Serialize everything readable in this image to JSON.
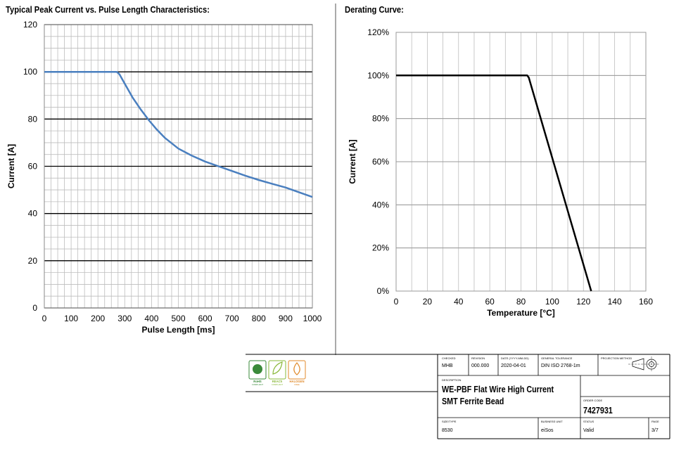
{
  "chart_data": [
    {
      "type": "line",
      "title": "Typical Peak Current vs. Pulse Length Characteristics:",
      "xlabel": "Pulse Length [ms]",
      "ylabel": "Current [A]",
      "xlim": [
        0,
        1000
      ],
      "ylim": [
        0,
        120
      ],
      "xticks": [
        "0",
        "100",
        "200",
        "300",
        "400",
        "500",
        "600",
        "700",
        "800",
        "900",
        "1000"
      ],
      "yticks": [
        "0",
        "20",
        "40",
        "60",
        "80",
        "100",
        "120"
      ],
      "grid": true,
      "color": "#4a7fbf",
      "series": [
        {
          "x": [
            0,
            270,
            280,
            300,
            330,
            360,
            390,
            420,
            450,
            500,
            550,
            600,
            650,
            700,
            750,
            800,
            850,
            900,
            950,
            1000
          ],
          "values": [
            100,
            100,
            99,
            95,
            89,
            84,
            79.5,
            75.5,
            72,
            67.5,
            64.5,
            62,
            60,
            58,
            56,
            54.2,
            52.6,
            51,
            49,
            47
          ]
        }
      ]
    },
    {
      "type": "line",
      "title": "Derating Curve:",
      "xlabel": "Temperature [°C]",
      "ylabel": "Current [A]",
      "xlim": [
        0,
        160
      ],
      "ylim": [
        0,
        120
      ],
      "xticks": [
        "0",
        "20",
        "40",
        "60",
        "80",
        "100",
        "120",
        "140",
        "160"
      ],
      "yticks": [
        "0%",
        "20%",
        "40%",
        "60%",
        "80%",
        "100%",
        "120%"
      ],
      "grid": true,
      "color": "#000000",
      "series": [
        {
          "x": [
            0,
            84,
            85,
            125
          ],
          "values": [
            100,
            100,
            99,
            0
          ]
        }
      ]
    }
  ],
  "badges": [
    {
      "label": "RoHS",
      "sub": "COMPLIANT",
      "color": "#3a8a3a"
    },
    {
      "label": "REACh",
      "sub": "COMPLIANT",
      "color": "#8ab83a"
    },
    {
      "label": "HALOGEN",
      "sub": "FREE",
      "color": "#e08a2a"
    }
  ],
  "titleblock": {
    "checked_label": "CHECKED",
    "checked": "MHB",
    "revision_label": "REVISION",
    "revision": "000.000",
    "date_label": "DATE (YYYY-MM-DD)",
    "date": "2020-04-01",
    "tolerance_label": "GENERAL TOLERANCE",
    "tolerance": "DIN ISO 2768-1m",
    "projection_label": "PROJECTION METHOD",
    "description_label": "DESCRIPTION",
    "description_line1": "WE-PBF Flat Wire High Current",
    "description_line2": "SMT Ferrite Bead",
    "order_code_label": "ORDER CODE",
    "order_code": "7427931",
    "size_label": "SIZE/TYPE",
    "size": "8530",
    "business_unit_label": "BUSINESS UNIT",
    "business_unit": "eiSos",
    "status_label": "STATUS",
    "status": "Valid",
    "page_label": "PAGE",
    "page": "3/7"
  }
}
